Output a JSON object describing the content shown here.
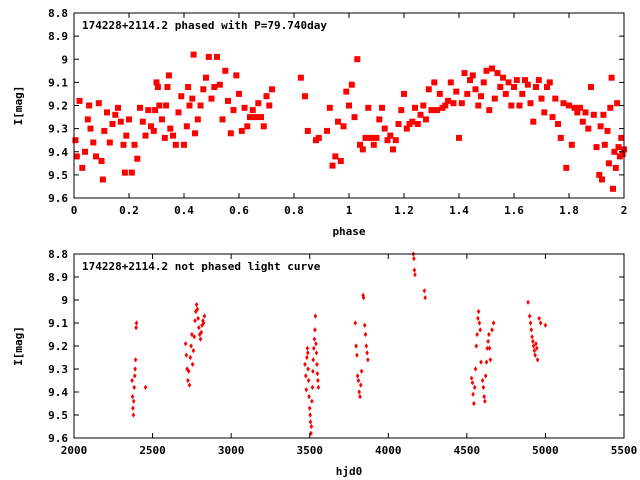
{
  "colors": {
    "points": "#ff0000",
    "axes": "#000000",
    "background": "#ffffff"
  },
  "chart_data": [
    {
      "type": "scatter",
      "title": "174228+2114.2 phased with P=79.740day",
      "xlabel": "phase",
      "ylabel": "I[mag]",
      "xlim": [
        0,
        2
      ],
      "ylim": [
        8.8,
        9.6
      ],
      "y_inverted": true,
      "grid": false,
      "legend": "none",
      "marker": "filled-square",
      "xticks": [
        0,
        0.2,
        0.4,
        0.6,
        0.8,
        1,
        1.2,
        1.4,
        1.6,
        1.8,
        2
      ],
      "xtick_labels": [
        "0",
        "0.2",
        "0.4",
        "0.6",
        "0.8",
        "1",
        "1.2",
        "1.4",
        "1.6",
        "1.8",
        "2"
      ],
      "yticks": [
        8.8,
        8.9,
        9,
        9.1,
        9.2,
        9.3,
        9.4,
        9.5,
        9.6
      ],
      "ytick_labels": [
        "8.8",
        "8.9",
        "9",
        "9.1",
        "9.2",
        "9.3",
        "9.4",
        "9.5",
        "9.6"
      ],
      "points": [
        [
          0.005,
          9.35
        ],
        [
          0.01,
          9.42
        ],
        [
          0.02,
          9.18
        ],
        [
          0.03,
          9.47
        ],
        [
          0.04,
          9.4
        ],
        [
          0.05,
          9.26
        ],
        [
          0.055,
          9.2
        ],
        [
          0.06,
          9.3
        ],
        [
          0.07,
          9.36
        ],
        [
          0.08,
          9.42
        ],
        [
          0.09,
          9.19
        ],
        [
          0.1,
          9.44
        ],
        [
          0.105,
          9.52
        ],
        [
          0.11,
          9.31
        ],
        [
          0.12,
          9.23
        ],
        [
          0.13,
          9.36
        ],
        [
          0.14,
          9.28
        ],
        [
          0.15,
          9.24
        ],
        [
          0.16,
          9.21
        ],
        [
          0.17,
          9.27
        ],
        [
          0.18,
          9.37
        ],
        [
          0.185,
          9.49
        ],
        [
          0.19,
          9.33
        ],
        [
          0.2,
          9.26
        ],
        [
          0.21,
          9.49
        ],
        [
          0.22,
          9.37
        ],
        [
          0.23,
          9.43
        ],
        [
          0.24,
          9.21
        ],
        [
          0.25,
          9.27
        ],
        [
          0.26,
          9.33
        ],
        [
          0.27,
          9.22
        ],
        [
          0.28,
          9.29
        ],
        [
          0.29,
          9.31
        ],
        [
          0.295,
          9.22
        ],
        [
          0.3,
          9.1
        ],
        [
          0.305,
          9.12
        ],
        [
          0.31,
          9.2
        ],
        [
          0.32,
          9.26
        ],
        [
          0.33,
          9.34
        ],
        [
          0.335,
          9.2
        ],
        [
          0.34,
          9.12
        ],
        [
          0.345,
          9.07
        ],
        [
          0.35,
          9.3
        ],
        [
          0.36,
          9.33
        ],
        [
          0.37,
          9.37
        ],
        [
          0.38,
          9.23
        ],
        [
          0.39,
          9.16
        ],
        [
          0.4,
          9.37
        ],
        [
          0.41,
          9.29
        ],
        [
          0.415,
          9.12
        ],
        [
          0.42,
          9.2
        ],
        [
          0.43,
          9.17
        ],
        [
          0.435,
          8.98
        ],
        [
          0.44,
          9.32
        ],
        [
          0.45,
          9.26
        ],
        [
          0.46,
          9.2
        ],
        [
          0.47,
          9.13
        ],
        [
          0.48,
          9.08
        ],
        [
          0.49,
          8.99
        ],
        [
          0.5,
          9.17
        ],
        [
          0.51,
          9.12
        ],
        [
          0.52,
          8.99
        ],
        [
          0.53,
          9.11
        ],
        [
          0.54,
          9.26
        ],
        [
          0.55,
          9.05
        ],
        [
          0.56,
          9.18
        ],
        [
          0.57,
          9.32
        ],
        [
          0.58,
          9.22
        ],
        [
          0.59,
          9.07
        ],
        [
          0.6,
          9.15
        ],
        [
          0.61,
          9.31
        ],
        [
          0.62,
          9.21
        ],
        [
          0.63,
          9.29
        ],
        [
          0.64,
          9.25
        ],
        [
          0.65,
          9.22
        ],
        [
          0.66,
          9.25
        ],
        [
          0.67,
          9.19
        ],
        [
          0.68,
          9.25
        ],
        [
          0.69,
          9.29
        ],
        [
          0.7,
          9.16
        ],
        [
          0.71,
          9.2
        ],
        [
          0.72,
          9.13
        ],
        [
          0.825,
          9.08
        ],
        [
          0.84,
          9.16
        ],
        [
          0.85,
          9.31
        ],
        [
          0.88,
          9.35
        ],
        [
          0.89,
          9.34
        ],
        [
          0.92,
          9.31
        ],
        [
          0.93,
          9.21
        ],
        [
          0.94,
          9.46
        ],
        [
          0.95,
          9.42
        ],
        [
          0.96,
          9.27
        ],
        [
          0.97,
          9.44
        ],
        [
          0.98,
          9.29
        ],
        [
          0.99,
          9.14
        ],
        [
          1.0,
          9.2
        ],
        [
          1.01,
          9.11
        ],
        [
          1.02,
          9.25
        ],
        [
          1.03,
          9.0
        ],
        [
          1.04,
          9.37
        ],
        [
          1.05,
          9.39
        ],
        [
          1.06,
          9.34
        ],
        [
          1.07,
          9.21
        ],
        [
          1.08,
          9.34
        ],
        [
          1.09,
          9.37
        ],
        [
          1.1,
          9.34
        ],
        [
          1.11,
          9.26
        ],
        [
          1.12,
          9.21
        ],
        [
          1.13,
          9.3
        ],
        [
          1.14,
          9.35
        ],
        [
          1.15,
          9.33
        ],
        [
          1.16,
          9.39
        ],
        [
          1.17,
          9.35
        ],
        [
          1.18,
          9.28
        ],
        [
          1.19,
          9.22
        ],
        [
          1.2,
          9.15
        ],
        [
          1.21,
          9.3
        ],
        [
          1.22,
          9.28
        ],
        [
          1.23,
          9.27
        ],
        [
          1.24,
          9.21
        ],
        [
          1.25,
          9.28
        ],
        [
          1.26,
          9.24
        ],
        [
          1.27,
          9.2
        ],
        [
          1.28,
          9.26
        ],
        [
          1.29,
          9.13
        ],
        [
          1.3,
          9.22
        ],
        [
          1.31,
          9.1
        ],
        [
          1.32,
          9.22
        ],
        [
          1.33,
          9.15
        ],
        [
          1.34,
          9.21
        ],
        [
          1.35,
          9.2
        ],
        [
          1.36,
          9.18
        ],
        [
          1.37,
          9.1
        ],
        [
          1.38,
          9.19
        ],
        [
          1.39,
          9.14
        ],
        [
          1.4,
          9.34
        ],
        [
          1.41,
          9.19
        ],
        [
          1.42,
          9.06
        ],
        [
          1.43,
          9.15
        ],
        [
          1.44,
          9.09
        ],
        [
          1.45,
          9.07
        ],
        [
          1.46,
          9.13
        ],
        [
          1.47,
          9.2
        ],
        [
          1.48,
          9.16
        ],
        [
          1.49,
          9.1
        ],
        [
          1.5,
          9.05
        ],
        [
          1.51,
          9.22
        ],
        [
          1.52,
          9.04
        ],
        [
          1.53,
          9.17
        ],
        [
          1.54,
          9.06
        ],
        [
          1.55,
          9.12
        ],
        [
          1.56,
          9.08
        ],
        [
          1.57,
          9.15
        ],
        [
          1.58,
          9.1
        ],
        [
          1.59,
          9.2
        ],
        [
          1.6,
          9.12
        ],
        [
          1.61,
          9.09
        ],
        [
          1.62,
          9.2
        ],
        [
          1.63,
          9.15
        ],
        [
          1.64,
          9.09
        ],
        [
          1.65,
          9.11
        ],
        [
          1.66,
          9.19
        ],
        [
          1.67,
          9.27
        ],
        [
          1.68,
          9.12
        ],
        [
          1.69,
          9.09
        ],
        [
          1.7,
          9.17
        ],
        [
          1.71,
          9.23
        ],
        [
          1.72,
          9.12
        ],
        [
          1.73,
          9.1
        ],
        [
          1.74,
          9.25
        ],
        [
          1.75,
          9.17
        ],
        [
          1.76,
          9.28
        ],
        [
          1.77,
          9.34
        ],
        [
          1.78,
          9.19
        ],
        [
          1.79,
          9.47
        ],
        [
          1.8,
          9.2
        ],
        [
          1.81,
          9.37
        ],
        [
          1.82,
          9.21
        ],
        [
          1.83,
          9.23
        ],
        [
          1.84,
          9.21
        ],
        [
          1.85,
          9.27
        ],
        [
          1.86,
          9.23
        ],
        [
          1.87,
          9.3
        ],
        [
          1.88,
          9.12
        ],
        [
          1.89,
          9.24
        ],
        [
          1.9,
          9.38
        ],
        [
          1.91,
          9.5
        ],
        [
          1.915,
          9.29
        ],
        [
          1.92,
          9.52
        ],
        [
          1.925,
          9.24
        ],
        [
          1.93,
          9.37
        ],
        [
          1.94,
          9.31
        ],
        [
          1.945,
          9.45
        ],
        [
          1.95,
          9.21
        ],
        [
          1.955,
          9.08
        ],
        [
          1.96,
          9.56
        ],
        [
          1.965,
          9.4
        ],
        [
          1.97,
          9.47
        ],
        [
          1.975,
          9.19
        ],
        [
          1.98,
          9.38
        ],
        [
          1.985,
          9.42
        ],
        [
          1.99,
          9.34
        ],
        [
          1.995,
          9.41
        ],
        [
          2.0,
          9.39
        ]
      ]
    },
    {
      "type": "scatter",
      "title": "174228+2114.2 not phased light curve",
      "xlabel": "hjd0",
      "ylabel": "I[mag]",
      "xlim": [
        2000,
        5500
      ],
      "ylim": [
        8.8,
        9.6
      ],
      "y_inverted": true,
      "grid": false,
      "legend": "none",
      "marker": "small-diamond",
      "xticks": [
        2000,
        2500,
        3000,
        3500,
        4000,
        4500,
        5000,
        5500
      ],
      "xtick_labels": [
        "2000",
        "2500",
        "3000",
        "3500",
        "4000",
        "4500",
        "5000",
        "5500"
      ],
      "yticks": [
        8.8,
        8.9,
        9,
        9.1,
        9.2,
        9.3,
        9.4,
        9.5,
        9.6
      ],
      "ytick_labels": [
        "8.8",
        "8.9",
        "9",
        "9.1",
        "9.2",
        "9.3",
        "9.4",
        "9.5",
        "9.6"
      ],
      "points": [
        [
          2370,
          9.35
        ],
        [
          2372,
          9.42
        ],
        [
          2375,
          9.47
        ],
        [
          2378,
          9.5
        ],
        [
          2380,
          9.44
        ],
        [
          2383,
          9.38
        ],
        [
          2386,
          9.33
        ],
        [
          2389,
          9.3
        ],
        [
          2392,
          9.26
        ],
        [
          2395,
          9.12
        ],
        [
          2398,
          9.1
        ],
        [
          2455,
          9.38
        ],
        [
          2710,
          9.19
        ],
        [
          2715,
          9.24
        ],
        [
          2720,
          9.3
        ],
        [
          2725,
          9.35
        ],
        [
          2730,
          9.31
        ],
        [
          2735,
          9.37
        ],
        [
          2740,
          9.25
        ],
        [
          2745,
          9.2
        ],
        [
          2750,
          9.15
        ],
        [
          2755,
          9.28
        ],
        [
          2760,
          9.22
        ],
        [
          2765,
          9.16
        ],
        [
          2770,
          9.09
        ],
        [
          2775,
          9.05
        ],
        [
          2780,
          9.02
        ],
        [
          2785,
          9.04
        ],
        [
          2790,
          9.08
        ],
        [
          2795,
          9.12
        ],
        [
          2800,
          9.15
        ],
        [
          2805,
          9.17
        ],
        [
          2810,
          9.14
        ],
        [
          2815,
          9.11
        ],
        [
          2820,
          9.09
        ],
        [
          2825,
          9.1
        ],
        [
          2830,
          9.07
        ],
        [
          3470,
          9.28
        ],
        [
          3475,
          9.33
        ],
        [
          3478,
          9.39
        ],
        [
          3482,
          9.25
        ],
        [
          3485,
          9.21
        ],
        [
          3488,
          9.23
        ],
        [
          3490,
          9.3
        ],
        [
          3493,
          9.35
        ],
        [
          3496,
          9.42
        ],
        [
          3500,
          9.47
        ],
        [
          3503,
          9.5
        ],
        [
          3505,
          9.53
        ],
        [
          3508,
          9.58
        ],
        [
          3511,
          9.55
        ],
        [
          3514,
          9.44
        ],
        [
          3517,
          9.38
        ],
        [
          3520,
          9.31
        ],
        [
          3523,
          9.26
        ],
        [
          3526,
          9.21
        ],
        [
          3530,
          9.17
        ],
        [
          3533,
          9.13
        ],
        [
          3536,
          9.07
        ],
        [
          3540,
          9.19
        ],
        [
          3543,
          9.23
        ],
        [
          3546,
          9.28
        ],
        [
          3549,
          9.32
        ],
        [
          3552,
          9.35
        ],
        [
          3555,
          9.38
        ],
        [
          3790,
          9.1
        ],
        [
          3795,
          9.2
        ],
        [
          3800,
          9.24
        ],
        [
          3805,
          9.33
        ],
        [
          3810,
          9.35
        ],
        [
          3815,
          9.4
        ],
        [
          3820,
          9.42
        ],
        [
          3825,
          9.37
        ],
        [
          3830,
          9.31
        ],
        [
          3840,
          8.98
        ],
        [
          3843,
          8.99
        ],
        [
          3850,
          9.11
        ],
        [
          3855,
          9.15
        ],
        [
          3860,
          9.2
        ],
        [
          3865,
          9.23
        ],
        [
          3870,
          9.26
        ],
        [
          4160,
          8.8
        ],
        [
          4163,
          8.82
        ],
        [
          4166,
          8.87
        ],
        [
          4170,
          8.89
        ],
        [
          4230,
          8.96
        ],
        [
          4235,
          8.99
        ],
        [
          4530,
          9.34
        ],
        [
          4535,
          9.36
        ],
        [
          4540,
          9.41
        ],
        [
          4545,
          9.45
        ],
        [
          4550,
          9.38
        ],
        [
          4555,
          9.3
        ],
        [
          4560,
          9.2
        ],
        [
          4565,
          9.15
        ],
        [
          4570,
          9.08
        ],
        [
          4575,
          9.05
        ],
        [
          4580,
          9.1
        ],
        [
          4585,
          9.13
        ],
        [
          4590,
          9.27
        ],
        [
          4600,
          9.35
        ],
        [
          4605,
          9.38
        ],
        [
          4610,
          9.42
        ],
        [
          4615,
          9.44
        ],
        [
          4620,
          9.33
        ],
        [
          4625,
          9.27
        ],
        [
          4630,
          9.21
        ],
        [
          4635,
          9.18
        ],
        [
          4640,
          9.15
        ],
        [
          4645,
          9.21
        ],
        [
          4650,
          9.26
        ],
        [
          4660,
          9.13
        ],
        [
          4670,
          9.1
        ],
        [
          4890,
          9.01
        ],
        [
          4900,
          9.07
        ],
        [
          4905,
          9.1
        ],
        [
          4910,
          9.13
        ],
        [
          4915,
          9.16
        ],
        [
          4920,
          9.18
        ],
        [
          4925,
          9.2
        ],
        [
          4930,
          9.22
        ],
        [
          4935,
          9.24
        ],
        [
          4940,
          9.19
        ],
        [
          4945,
          9.21
        ],
        [
          4950,
          9.26
        ],
        [
          4960,
          9.08
        ],
        [
          4970,
          9.1
        ],
        [
          5000,
          9.11
        ]
      ]
    }
  ]
}
